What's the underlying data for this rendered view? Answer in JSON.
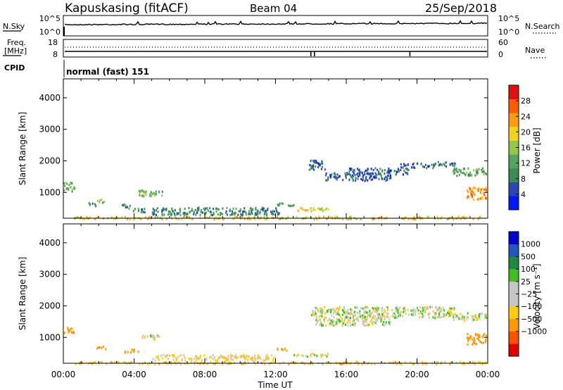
{
  "header": {
    "site": "Kapuskasing (fitACF)",
    "beam": "Beam 04",
    "date": "25/Sep/2018"
  },
  "sky_panel": {
    "left_label": "N.Sky",
    "left_ticks": [
      "10^5",
      "10^0"
    ],
    "right_label": "N.Search",
    "right_ticks": [
      "10^5",
      "10^0"
    ]
  },
  "freq_panel": {
    "left_label_1": "Freq.",
    "left_label_2": "[MHz]",
    "left_ticks": [
      "18",
      "8"
    ],
    "right_label": "Nave",
    "right_ticks": [
      "60",
      "0"
    ]
  },
  "cpid_panel": {
    "label": "CPID",
    "mode": "normal (fast) 151"
  },
  "time_axis": {
    "title": "Time UT",
    "ticks": [
      "00:00",
      "04:00",
      "08:00",
      "12:00",
      "16:00",
      "20:00",
      "00:00"
    ]
  },
  "colors": {
    "power_scale": [
      "#0018ff",
      "#2c46b8",
      "#3c8a56",
      "#54a55c",
      "#94c648",
      "#f2d21a",
      "#ff9d10",
      "#ff5a00",
      "#e01010"
    ],
    "velocity_scale": [
      "#e00000",
      "#ff5000",
      "#ff9900",
      "#ffcc11",
      "#c6c6c6",
      "#c6c6c6",
      "#40c020",
      "#1e8a40",
      "#2255c0",
      "#0000d0"
    ]
  },
  "chart_data": [
    {
      "type": "heatmap",
      "title": "",
      "quantity": "Power",
      "ylabel": "Slant Range [km]",
      "ylim": [
        180,
        4600
      ],
      "xlim": [
        0,
        24
      ],
      "yticks": [
        1000,
        2000,
        3000,
        4000
      ],
      "ytick_labels": [
        "1000",
        "2000",
        "3000",
        "4000"
      ],
      "grid": false,
      "colorbar": {
        "label": "Power [dB]",
        "range": [
          0,
          32
        ],
        "ticks": [
          4,
          8,
          12,
          16,
          20,
          24,
          28
        ],
        "tick_labels": [
          "4",
          "8",
          "12",
          "16",
          "20",
          "24",
          "28"
        ]
      },
      "regions": [
        {
          "x": [
            0.0,
            0.6
          ],
          "y": [
            1050,
            1350
          ],
          "value": 12
        },
        {
          "x": [
            0.6,
            24.0
          ],
          "y": [
            180,
            260
          ],
          "value": 20
        },
        {
          "x": [
            1.2,
            1.8
          ],
          "y": [
            600,
            700
          ],
          "value": 10
        },
        {
          "x": [
            1.9,
            2.4
          ],
          "y": [
            700,
            800
          ],
          "value": 14
        },
        {
          "x": [
            3.2,
            3.8
          ],
          "y": [
            550,
            650
          ],
          "value": 10
        },
        {
          "x": [
            3.6,
            4.6
          ],
          "y": [
            400,
            520
          ],
          "value": 8
        },
        {
          "x": [
            4.2,
            5.6
          ],
          "y": [
            900,
            1100
          ],
          "value": 14
        },
        {
          "x": [
            5.0,
            12.2
          ],
          "y": [
            300,
            550
          ],
          "value": 9
        },
        {
          "x": [
            12.0,
            13.0
          ],
          "y": [
            600,
            700
          ],
          "value": 12
        },
        {
          "x": [
            13.2,
            15.0
          ],
          "y": [
            420,
            540
          ],
          "value": 20
        },
        {
          "x": [
            13.8,
            14.8
          ],
          "y": [
            1750,
            2050
          ],
          "value": 6
        },
        {
          "x": [
            14.8,
            18.5
          ],
          "y": [
            1400,
            1650
          ],
          "value": 6
        },
        {
          "x": [
            16.0,
            19.5
          ],
          "y": [
            1600,
            1800
          ],
          "value": 7
        },
        {
          "x": [
            19.0,
            21.0
          ],
          "y": [
            1800,
            1950
          ],
          "value": 6
        },
        {
          "x": [
            20.8,
            22.2
          ],
          "y": [
            1850,
            2000
          ],
          "value": 8
        },
        {
          "x": [
            22.0,
            23.9
          ],
          "y": [
            1550,
            1800
          ],
          "value": 12
        },
        {
          "x": [
            22.8,
            23.9
          ],
          "y": [
            800,
            1200
          ],
          "value": 24
        }
      ]
    },
    {
      "type": "heatmap",
      "title": "",
      "quantity": "Velocity",
      "ylabel": "Slant Range [km]",
      "ylim": [
        180,
        4600
      ],
      "xlim": [
        0,
        24
      ],
      "yticks": [
        1000,
        2000,
        3000,
        4000
      ],
      "ytick_labels": [
        "1000",
        "2000",
        "3000",
        "4000"
      ],
      "grid": false,
      "colorbar": {
        "label": "Velocity [m s⁻¹]",
        "levels": [
          "-1000",
          "-500",
          "-100",
          "-25",
          "25",
          "100",
          "500",
          "1000"
        ],
        "tick_labels": [
          "1000",
          "500",
          "100",
          "25",
          "−25",
          "−100",
          "−500",
          "−1000"
        ]
      },
      "regions": [
        {
          "x": [
            0.0,
            0.6
          ],
          "y": [
            1150,
            1350
          ],
          "value": -300
        },
        {
          "x": [
            0.6,
            24.0
          ],
          "y": [
            180,
            260
          ],
          "value": -60
        },
        {
          "x": [
            1.8,
            2.4
          ],
          "y": [
            650,
            760
          ],
          "value": -200
        },
        {
          "x": [
            3.4,
            4.2
          ],
          "y": [
            550,
            650
          ],
          "value": -200
        },
        {
          "x": [
            4.4,
            5.6
          ],
          "y": [
            950,
            1100
          ],
          "value": 0
        },
        {
          "x": [
            5.0,
            12.0
          ],
          "y": [
            300,
            480
          ],
          "value": -40
        },
        {
          "x": [
            12.0,
            12.6
          ],
          "y": [
            600,
            700
          ],
          "value": -200
        },
        {
          "x": [
            13.0,
            15.0
          ],
          "y": [
            420,
            520
          ],
          "value": 0
        },
        {
          "x": [
            14.0,
            18.5
          ],
          "y": [
            1400,
            2000
          ],
          "value": 0
        },
        {
          "x": [
            18.5,
            22.2
          ],
          "y": [
            1650,
            2000
          ],
          "value": 0
        },
        {
          "x": [
            22.0,
            23.9
          ],
          "y": [
            1550,
            1800
          ],
          "value": 0
        },
        {
          "x": [
            22.8,
            23.9
          ],
          "y": [
            800,
            1150
          ],
          "value": -300
        }
      ]
    }
  ]
}
